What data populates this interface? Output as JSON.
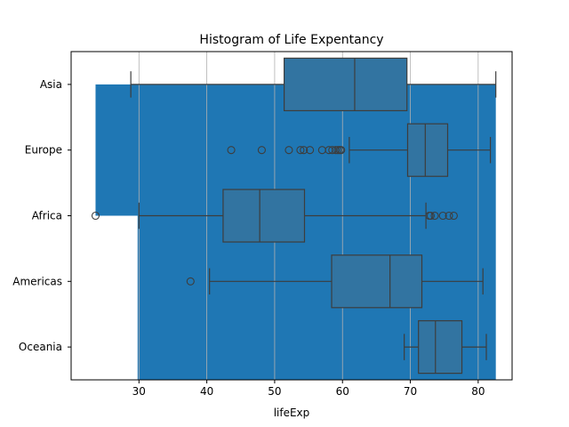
{
  "chart_data": {
    "type": "box",
    "title": "Histogram of Life Expentancy",
    "xlabel": "lifeExp",
    "ylabel": "",
    "xlim": [
      20,
      85
    ],
    "xticks": [
      30,
      40,
      50,
      60,
      70,
      80
    ],
    "grid": "x",
    "categories": [
      "Asia",
      "Europe",
      "Africa",
      "Americas",
      "Oceania"
    ],
    "boxes": [
      {
        "category": "Asia",
        "min": 28.8,
        "q1": 51.4,
        "median": 61.8,
        "q3": 69.5,
        "max": 82.6,
        "outliers": []
      },
      {
        "category": "Europe",
        "min": 61.0,
        "q1": 69.6,
        "median": 72.2,
        "q3": 75.5,
        "max": 81.8,
        "outliers": [
          43.6,
          48.1,
          52.1,
          53.8,
          54.3,
          55.2,
          57.0,
          58.0,
          58.5,
          59.0,
          59.3,
          59.6,
          59.8
        ]
      },
      {
        "category": "Africa",
        "min": 30.0,
        "q1": 42.4,
        "median": 47.8,
        "q3": 54.4,
        "max": 72.3,
        "outliers": [
          23.6,
          72.8,
          73.0,
          73.6,
          74.8,
          75.7,
          76.4
        ]
      },
      {
        "category": "Americas",
        "min": 40.4,
        "q1": 58.4,
        "median": 67.0,
        "q3": 71.7,
        "max": 80.7,
        "outliers": [
          37.6
        ]
      },
      {
        "category": "Oceania",
        "min": 69.1,
        "q1": 71.2,
        "median": 73.7,
        "q3": 77.6,
        "max": 81.2,
        "outliers": []
      }
    ],
    "background_fill": {
      "color": "#1f77b4",
      "segments": [
        {
          "from_category": "Asia",
          "to_category": "Africa",
          "x_start": 23.6,
          "x_end": 82.6
        },
        {
          "from_category": "Africa",
          "to_category": "Oceania",
          "x_start": 29.8,
          "x_end": 82.6
        }
      ]
    },
    "box_color": "#3274a1",
    "line_color": "#3d3d3d",
    "fill_color": "#1f77b4"
  }
}
